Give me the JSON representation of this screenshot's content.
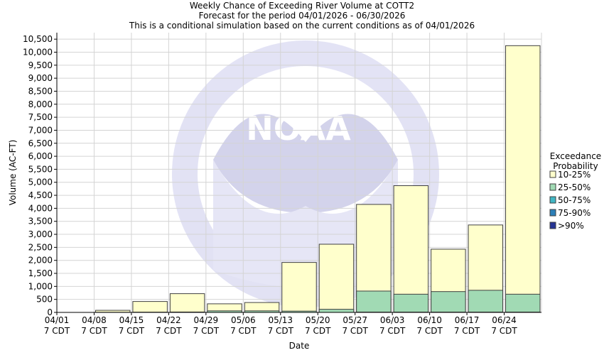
{
  "chart_data": {
    "type": "bar",
    "title_lines": [
      "Weekly Chance of Exceeding River Volume at COTT2",
      "Forecast for the period 04/01/2026 - 06/30/2026",
      "This is a conditional simulation based on the current conditions as of 04/01/2026"
    ],
    "xlabel": "Date",
    "ylabel": "Volume (AC-FT)",
    "ylim": [
      0,
      10750
    ],
    "yticks": [
      0,
      500,
      1000,
      1500,
      2000,
      2500,
      3000,
      3500,
      4000,
      4500,
      5000,
      5500,
      6000,
      6500,
      7000,
      7500,
      8000,
      8500,
      9000,
      9500,
      10000,
      10500
    ],
    "ytick_labels": [
      "0",
      "500",
      "1,000",
      "1,500",
      "2,000",
      "2,500",
      "3,000",
      "3,500",
      "4,000",
      "4,500",
      "5,000",
      "5,500",
      "6,000",
      "6,500",
      "7,000",
      "7,500",
      "8,000",
      "8,500",
      "9,000",
      "9,500",
      "10,000",
      "10,500"
    ],
    "x_tick_labels": [
      [
        "04/01",
        "7 CDT"
      ],
      [
        "04/08",
        "7 CDT"
      ],
      [
        "04/15",
        "7 CDT"
      ],
      [
        "04/22",
        "7 CDT"
      ],
      [
        "04/29",
        "7 CDT"
      ],
      [
        "05/06",
        "7 CDT"
      ],
      [
        "05/13",
        "7 CDT"
      ],
      [
        "05/20",
        "7 CDT"
      ],
      [
        "05/27",
        "7 CDT"
      ],
      [
        "06/03",
        "7 CDT"
      ],
      [
        "06/10",
        "7 CDT"
      ],
      [
        "06/17",
        "7 CDT"
      ],
      [
        "06/24",
        "7 CDT"
      ]
    ],
    "weeks": [
      "04/01",
      "04/08",
      "04/15",
      "04/22",
      "04/29",
      "05/06",
      "05/13",
      "05/20",
      "05/27",
      "06/03",
      "06/10",
      "06/17",
      "06/24"
    ],
    "series": [
      {
        "name": "10-25%",
        "color": "#ffffcc",
        "values": [
          0,
          80,
          420,
          720,
          330,
          380,
          1920,
          2620,
          4150,
          4870,
          2430,
          3360,
          10250
        ]
      },
      {
        "name": "25-50%",
        "color": "#a1dab4",
        "values": [
          0,
          5,
          10,
          15,
          60,
          60,
          50,
          120,
          820,
          700,
          800,
          850,
          700
        ]
      },
      {
        "name": "50-75%",
        "color": "#41b6c4",
        "values": [
          0,
          0,
          0,
          0,
          0,
          0,
          0,
          0,
          10,
          10,
          10,
          10,
          10
        ]
      },
      {
        "name": "75-90%",
        "color": "#2c7fb8",
        "values": [
          0,
          0,
          0,
          0,
          0,
          0,
          0,
          0,
          5,
          5,
          5,
          5,
          5
        ]
      },
      {
        "name": ">90%",
        "color": "#253494",
        "values": [
          0,
          0,
          0,
          0,
          0,
          0,
          0,
          0,
          0,
          0,
          0,
          0,
          0
        ]
      }
    ],
    "legend": {
      "title_lines": [
        "Exceedance",
        "Probability"
      ],
      "placement": "right"
    },
    "grid": true,
    "watermark": "NOAA"
  }
}
